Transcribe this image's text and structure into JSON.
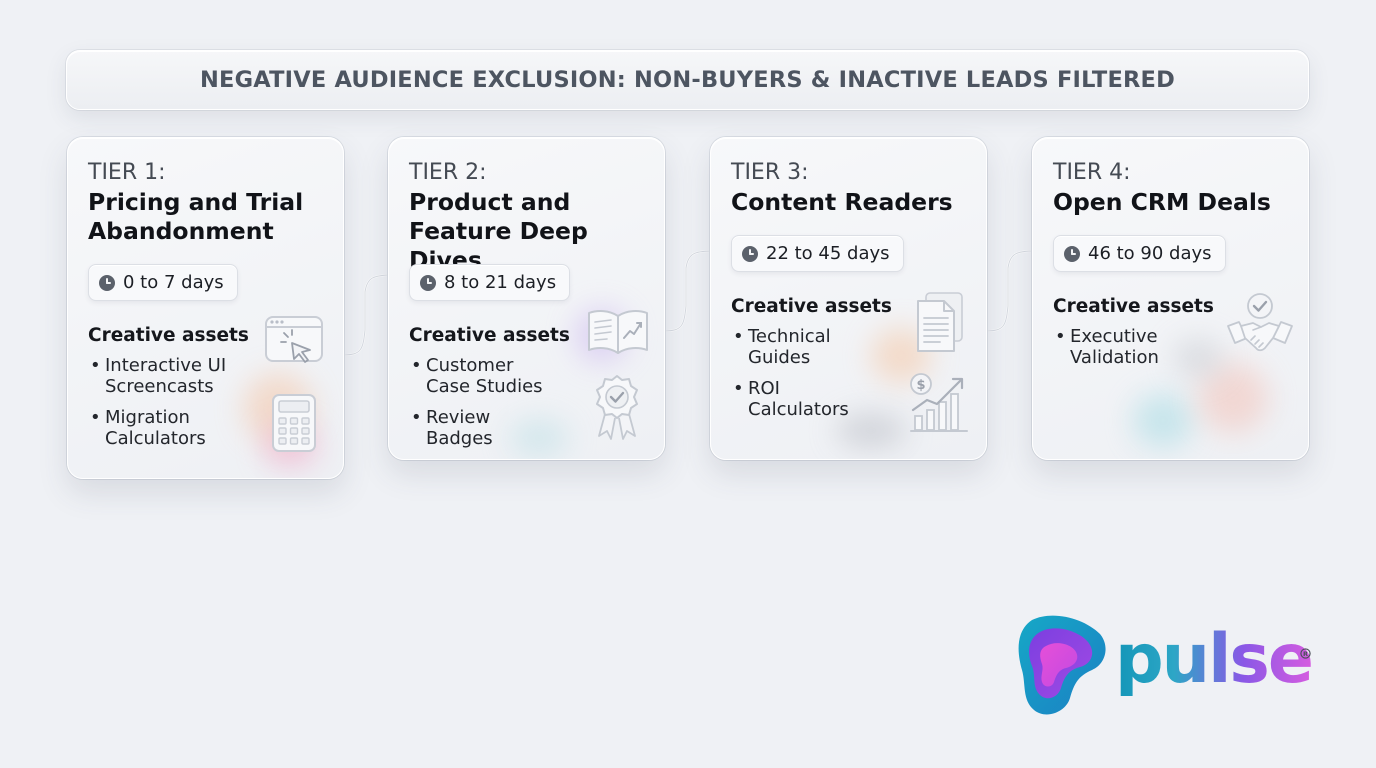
{
  "banner": {
    "text": "NEGATIVE AUDIENCE EXCLUSION: NON-BUYERS & INACTIVE LEADS FILTERED"
  },
  "tiers": [
    {
      "label": "TIER 1:",
      "title": "Pricing and Trial Abandonment",
      "duration": "0 to 7 days",
      "assets_heading": "Creative assets",
      "assets": [
        "Interactive UI Screencasts",
        "Migration Calculators"
      ],
      "icons": [
        "browser-cursor-icon",
        "calculator-icon"
      ]
    },
    {
      "label": "TIER 2:",
      "title": "Product and Feature Deep Dives",
      "duration": "8 to 21 days",
      "assets_heading": "Creative assets",
      "assets": [
        "Customer Case Studies",
        "Review Badges"
      ],
      "icons": [
        "open-book-chart-icon",
        "award-badge-icon"
      ]
    },
    {
      "label": "TIER 3:",
      "title": "Content Readers",
      "duration": "22 to 45 days",
      "assets_heading": "Creative assets",
      "assets": [
        "Technical Guides",
        "ROI Calculators"
      ],
      "icons": [
        "document-icon",
        "roi-growth-chart-icon"
      ]
    },
    {
      "label": "TIER 4:",
      "title": "Open CRM Deals",
      "duration": "46 to 90 days",
      "assets_heading": "Creative assets",
      "assets": [
        "Executive Validation"
      ],
      "icons": [
        "handshake-check-icon"
      ]
    }
  ],
  "logo": {
    "text": "pulse",
    "mark": "registered-mark"
  },
  "colors": {
    "background": "#eff1f5",
    "banner_text": "#4d5561",
    "logo_teal": "#1496b8",
    "logo_purple": "#8a58e6",
    "logo_magenta": "#d65ce0"
  }
}
